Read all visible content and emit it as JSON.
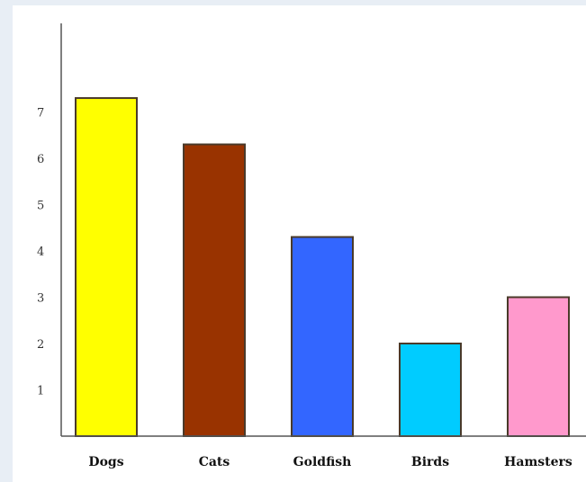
{
  "chart_data": {
    "type": "bar",
    "categories": [
      "Dogs",
      "Cats",
      "Goldfish",
      "Birds",
      "Hamsters"
    ],
    "values": [
      7.3,
      6.3,
      4.3,
      2.0,
      3.0
    ],
    "colors": [
      "#ffff00",
      "#993300",
      "#3366ff",
      "#00ccff",
      "#ff99cc"
    ],
    "ylim": [
      0,
      9
    ],
    "yticks": [
      1,
      2,
      3,
      4,
      5,
      6,
      7
    ],
    "grid": false,
    "title": "",
    "xlabel": "",
    "ylabel": ""
  }
}
